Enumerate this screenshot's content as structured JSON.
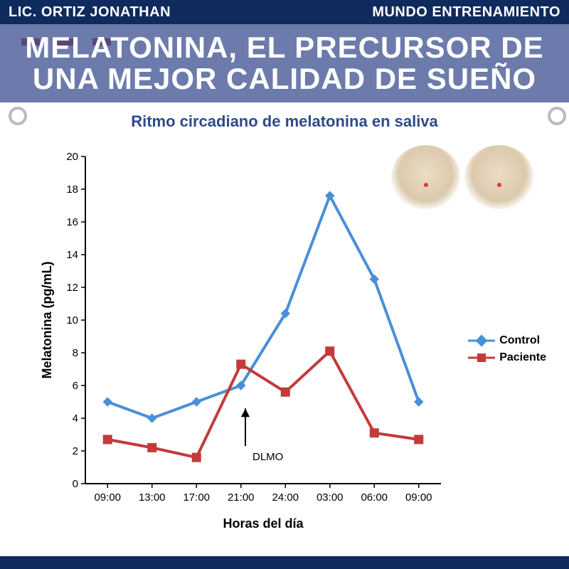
{
  "header": {
    "left": "LIC. ORTIZ JONATHAN",
    "right": "MUNDO ENTRENAMIENTO"
  },
  "title": "MELATONINA, EL PRECURSOR DE UNA MEJOR CALIDAD DE SUEÑO",
  "chart": {
    "title": "Ritmo circadiano de melatonina en saliva",
    "type": "line",
    "xlabel": "Horas del día",
    "ylabel": "Melatonina (pg/mL)",
    "x_categories": [
      "09:00",
      "13:00",
      "17:00",
      "21:00",
      "24:00",
      "03:00",
      "06:00",
      "09:00"
    ],
    "ylim": [
      0,
      20
    ],
    "ytick_step": 2,
    "background_color": "#ffffff",
    "axis_color": "#000000",
    "label_fontsize": 18,
    "tick_fontsize": 15,
    "line_width": 4,
    "marker_size": 12,
    "series": [
      {
        "name": "Control",
        "color": "#4a8fd8",
        "marker": "diamond",
        "values": [
          5.0,
          4.0,
          5.0,
          6.0,
          10.4,
          17.6,
          12.5,
          5.0
        ]
      },
      {
        "name": "Paciente",
        "color": "#c43a3a",
        "marker": "square",
        "values": [
          2.7,
          2.2,
          1.6,
          7.3,
          5.6,
          8.1,
          3.1,
          2.7
        ]
      }
    ],
    "annotation": {
      "label": "DLMO",
      "x_position": 3.1
    }
  },
  "colors": {
    "header_bg": "#0f2a5c",
    "title_band_bg": "rgba(59,79,143,0.75)",
    "chart_title_color": "#2f4a8a"
  }
}
